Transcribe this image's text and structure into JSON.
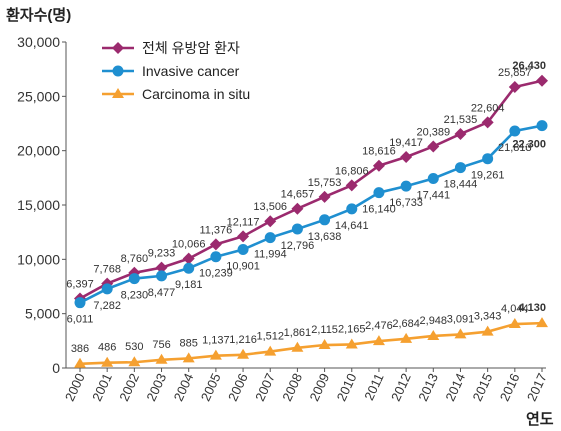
{
  "chart_data": {
    "type": "line",
    "title": "",
    "ylabel": "환자수(명)",
    "xlabel": "연도",
    "ylim": [
      0,
      30000
    ],
    "yticks": [
      0,
      5000,
      10000,
      15000,
      20000,
      25000,
      30000
    ],
    "ytick_labels": [
      "0",
      "5,000",
      "10,000",
      "15,000",
      "20,000",
      "25,000",
      "30,000"
    ],
    "x": [
      "2000",
      "2001",
      "2002",
      "2003",
      "2004",
      "2005",
      "2006",
      "2007",
      "2008",
      "2009",
      "2010",
      "2011",
      "2012",
      "2013",
      "2014",
      "2015",
      "2016",
      "2017"
    ],
    "grid": false,
    "legend_position": "top-left",
    "series": [
      {
        "name": "전체 유방암 환자",
        "color": "#9b2a6e",
        "marker": "diamond",
        "values": [
          6397,
          7768,
          8760,
          9233,
          10066,
          11376,
          12117,
          13506,
          14657,
          15753,
          16806,
          18616,
          19417,
          20389,
          21535,
          22604,
          25857,
          26430
        ],
        "labels": [
          "6,397",
          "7,768",
          "8,760",
          "9,233",
          "10,066",
          "11,376",
          "12,117",
          "13,506",
          "14,657",
          "15,753",
          "16,806",
          "18,616",
          "19,417",
          "20,389",
          "21,535",
          "22,604",
          "25,857",
          "26,430"
        ]
      },
      {
        "name": "Invasive cancer",
        "color": "#1f8fd0",
        "marker": "circle",
        "values": [
          6011,
          7282,
          8230,
          8477,
          9181,
          10239,
          10901,
          11994,
          12796,
          13638,
          14641,
          16140,
          16733,
          17441,
          18444,
          19261,
          21813,
          22300
        ],
        "labels": [
          "6,011",
          "7,282",
          "8,230",
          "8,477",
          "9,181",
          "10,239",
          "10,901",
          "11,994",
          "12,796",
          "13,638",
          "14,641",
          "16,140",
          "16,733",
          "17,441",
          "18,444",
          "19,261",
          "21,813",
          "22,300"
        ]
      },
      {
        "name": "Carcinoma in situ",
        "color": "#f5a030",
        "marker": "triangle",
        "values": [
          386,
          486,
          530,
          756,
          885,
          1137,
          1216,
          1512,
          1861,
          2115,
          2165,
          2476,
          2684,
          2948,
          3091,
          3343,
          4044,
          4130
        ],
        "labels": [
          "386",
          "486",
          "530",
          "756",
          "885",
          "1,137",
          "1,216",
          "1,512",
          "1,861",
          "2,115",
          "2,165",
          "2,476",
          "2,684",
          "2,948",
          "3,091",
          "3,343",
          "4,044",
          "4,130"
        ]
      }
    ]
  }
}
